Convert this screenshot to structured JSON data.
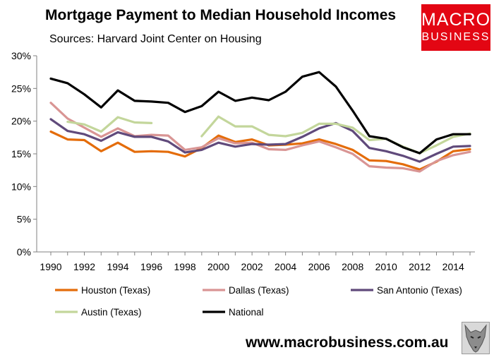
{
  "header": {
    "title": "Mortgage Payment to Median Household Incomes",
    "subtitle": "Sources: Harvard Joint Center on Housing"
  },
  "logo": {
    "line1": "MACRO",
    "line2": "BUSINESS",
    "color": "#e30613"
  },
  "footer": {
    "url": "www.macrobusiness.com.au",
    "mascot_icon": "wolf-icon"
  },
  "chart_data": {
    "type": "line",
    "title": "Mortgage Payment to Median Household Incomes",
    "xlabel": "",
    "ylabel": "",
    "x": [
      1990,
      1991,
      1992,
      1993,
      1994,
      1995,
      1996,
      1997,
      1998,
      1999,
      2000,
      2001,
      2002,
      2003,
      2004,
      2005,
      2006,
      2007,
      2008,
      2009,
      2010,
      2011,
      2012,
      2013,
      2014,
      2015
    ],
    "xticks": [
      "1990",
      "1992",
      "1994",
      "1996",
      "1998",
      "2000",
      "2002",
      "2004",
      "2006",
      "2008",
      "2010",
      "2012",
      "2014"
    ],
    "yticks": [
      "0%",
      "5%",
      "10%",
      "15%",
      "20%",
      "25%",
      "30%"
    ],
    "ylim": [
      0,
      30
    ],
    "grid": false,
    "legend_position": "bottom",
    "series": [
      {
        "name": "Houston (Texas)",
        "color": "#e46c0a",
        "values": [
          18.4,
          17.2,
          17.1,
          15.4,
          16.7,
          15.3,
          15.4,
          15.3,
          14.6,
          15.9,
          17.8,
          16.8,
          17.2,
          16.3,
          16.4,
          16.6,
          17.2,
          16.5,
          15.6,
          14.0,
          13.9,
          13.4,
          12.6,
          13.8,
          15.4,
          15.7
        ]
      },
      {
        "name": "Dallas (Texas)",
        "color": "#d99594",
        "values": [
          22.8,
          20.4,
          19.0,
          17.6,
          18.9,
          17.7,
          17.9,
          17.8,
          15.6,
          16.0,
          17.4,
          16.6,
          16.7,
          15.7,
          15.6,
          16.3,
          16.9,
          16.0,
          15.0,
          13.1,
          12.9,
          12.8,
          12.3,
          13.9,
          14.8,
          15.3
        ]
      },
      {
        "name": "San Antonio (Texas)",
        "color": "#604a7b",
        "values": [
          20.3,
          18.5,
          18.0,
          17.0,
          18.3,
          17.6,
          17.6,
          16.9,
          15.2,
          15.6,
          16.7,
          16.1,
          16.5,
          16.4,
          16.5,
          17.6,
          18.9,
          19.7,
          18.5,
          15.9,
          15.4,
          14.7,
          13.8,
          15.0,
          16.1,
          16.2
        ]
      },
      {
        "name": "Austin (Texas)",
        "color": "#c3d69b",
        "values": [
          null,
          19.9,
          19.5,
          18.4,
          20.6,
          19.8,
          19.7,
          null,
          null,
          17.7,
          20.7,
          19.2,
          19.2,
          17.9,
          17.7,
          18.2,
          19.6,
          19.6,
          19.0,
          17.1,
          17.3,
          16.1,
          15.1,
          16.3,
          17.6,
          18.1
        ]
      },
      {
        "name": "National",
        "color": "#000000",
        "values": [
          26.5,
          25.8,
          24.1,
          22.1,
          24.7,
          23.1,
          23.0,
          22.8,
          21.4,
          22.3,
          24.5,
          23.1,
          23.6,
          23.2,
          24.5,
          26.8,
          27.5,
          25.3,
          21.6,
          17.7,
          17.3,
          16.0,
          15.1,
          17.2,
          18.0,
          18.0
        ]
      }
    ]
  }
}
